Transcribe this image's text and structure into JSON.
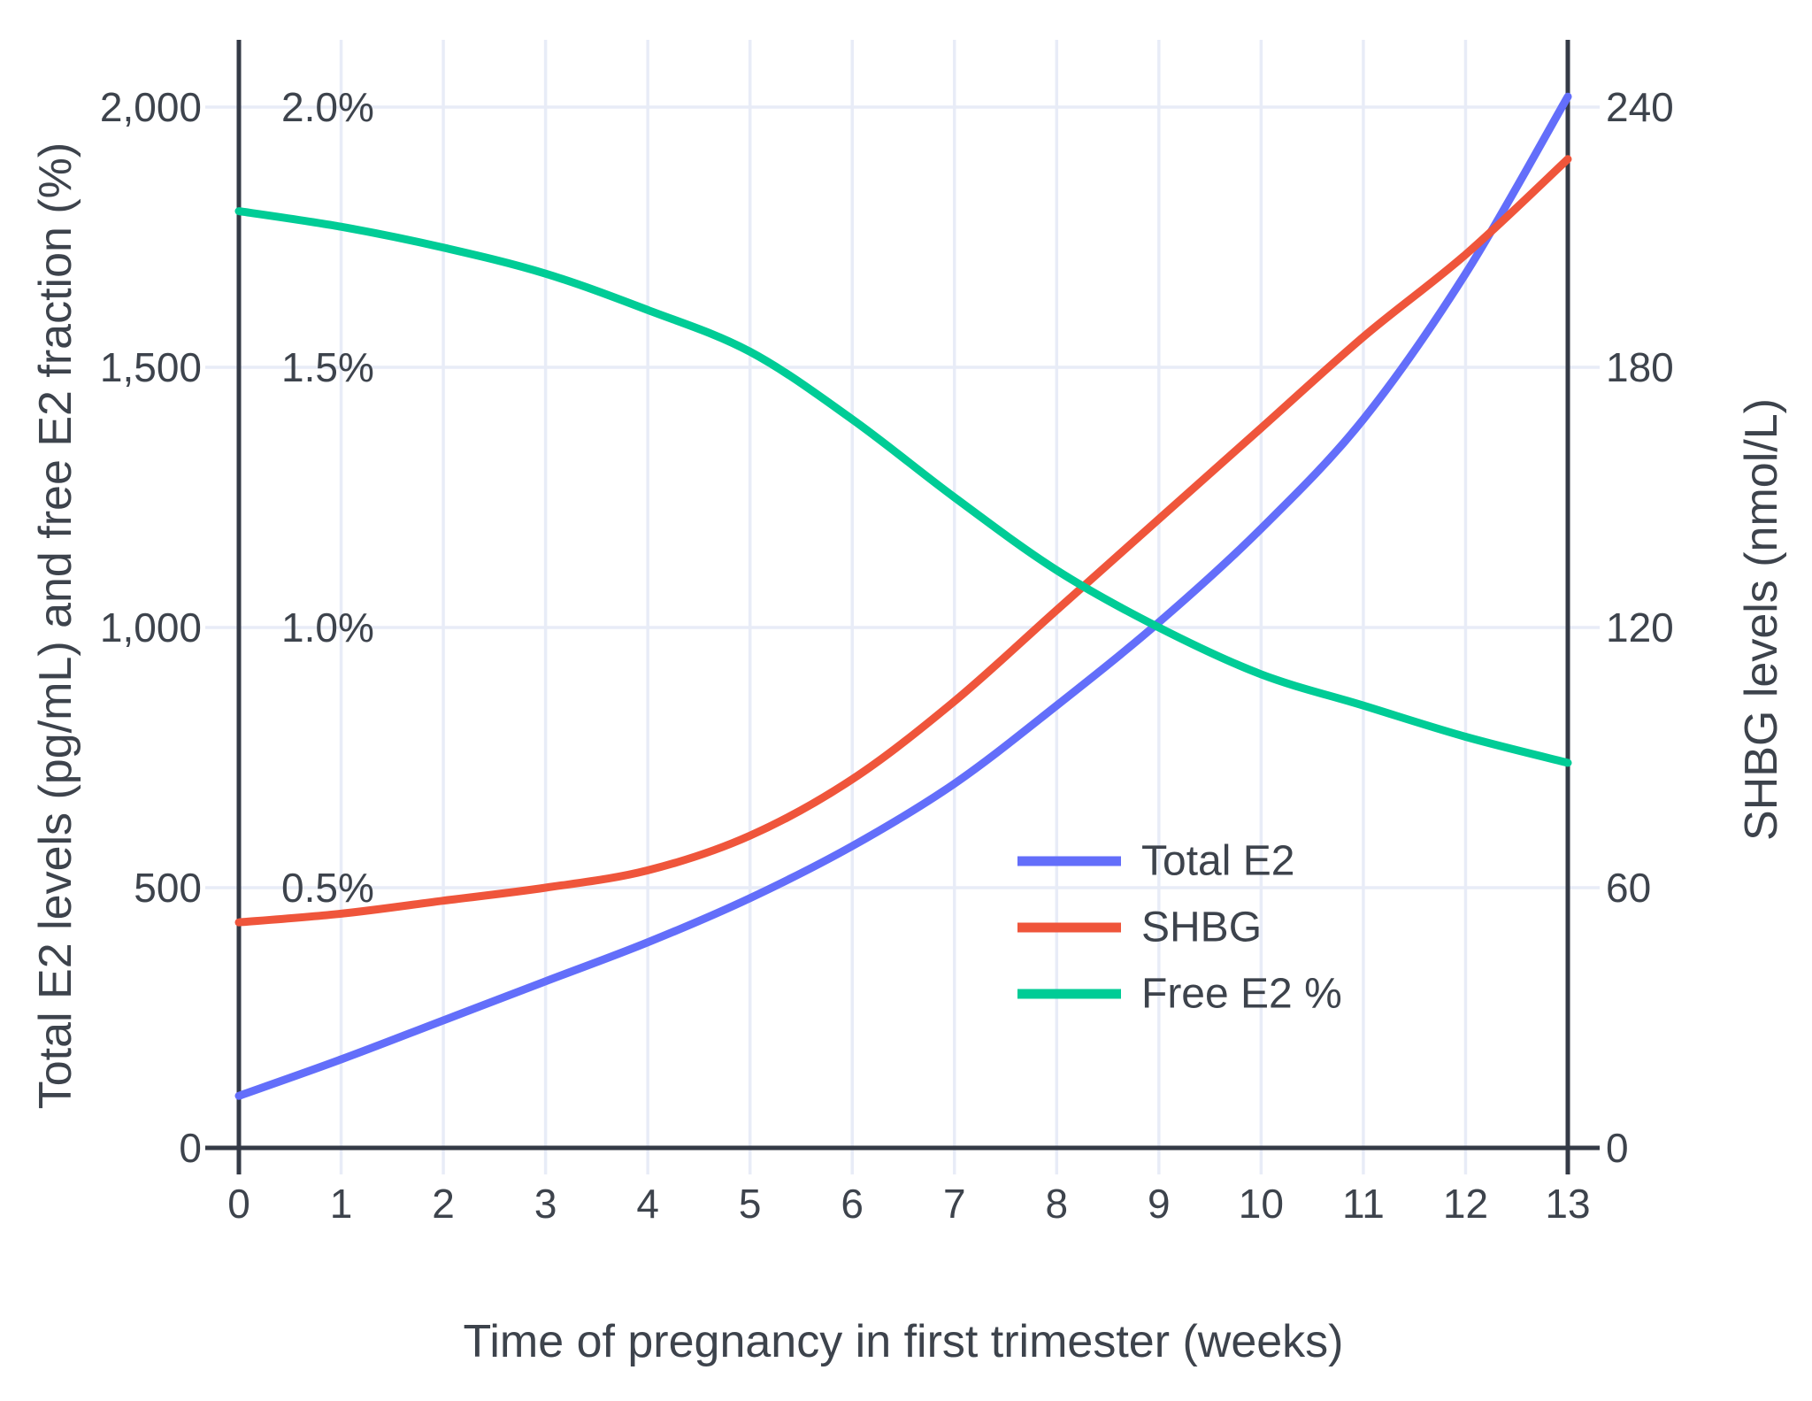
{
  "accent_colors": {
    "total_e2": "#636EFA",
    "shbg": "#EF553B",
    "free_e2": "#00CC96",
    "gridline": "#E8ECF7",
    "axis_line": "#343A46",
    "text": "#3D434C"
  },
  "axes": {
    "x_title": "Time of pregnancy in first trimester (weeks)",
    "y_left_title": "Total E2 levels (pg/mL) and free E2 fraction (%)",
    "y_right_title": "SHBG levels (nmol/L)",
    "x_ticks": [
      "0",
      "1",
      "2",
      "3",
      "4",
      "5",
      "6",
      "7",
      "8",
      "9",
      "10",
      "11",
      "12",
      "13"
    ],
    "y_left_ticks": [
      {
        "label": "0",
        "value": 0
      },
      {
        "label": "500",
        "value": 500
      },
      {
        "label": "1,000",
        "value": 1000
      },
      {
        "label": "1,500",
        "value": 1500
      },
      {
        "label": "2,000",
        "value": 2000
      }
    ],
    "y_left_inner_pct_ticks": [
      {
        "label": "0.5%",
        "value": 500
      },
      {
        "label": "1.0%",
        "value": 1000
      },
      {
        "label": "1.5%",
        "value": 1500
      },
      {
        "label": "2.0%",
        "value": 2000
      }
    ],
    "y_right_ticks": [
      {
        "label": "0",
        "value": 0
      },
      {
        "label": "60",
        "value": 60
      },
      {
        "label": "120",
        "value": 120
      },
      {
        "label": "180",
        "value": 180
      },
      {
        "label": "240",
        "value": 240
      }
    ]
  },
  "legend": [
    {
      "label": "Total E2",
      "color": "#636EFA"
    },
    {
      "label": "SHBG",
      "color": "#EF553B"
    },
    {
      "label": "Free E2 %",
      "color": "#00CC96"
    }
  ],
  "chart_data": {
    "type": "line",
    "x": [
      0,
      1,
      2,
      3,
      4,
      5,
      6,
      7,
      8,
      9,
      10,
      11,
      12,
      13
    ],
    "xlabel": "Time of pregnancy in first trimester (weeks)",
    "ylabel_left": "Total E2 levels (pg/mL) and free E2 fraction (%)",
    "ylabel_right": "SHBG levels (nmol/L)",
    "x_range": [
      0,
      13
    ],
    "y_left_range": [
      0,
      2130
    ],
    "y_right_range": [
      0,
      255.5
    ],
    "grid": true,
    "legend_position": "inside-right-middle",
    "series": [
      {
        "name": "Total E2",
        "axis": "left",
        "units": "pg/mL",
        "color": "#636EFA",
        "values": [
          100,
          170,
          245,
          320,
          395,
          480,
          580,
          700,
          850,
          1010,
          1190,
          1400,
          1680,
          2020
        ]
      },
      {
        "name": "SHBG",
        "axis": "right",
        "units": "nmol/L",
        "color": "#EF553B",
        "values": [
          52,
          54,
          57,
          60,
          64,
          72,
          85,
          103,
          124,
          145,
          166,
          187,
          206,
          228
        ]
      },
      {
        "name": "Free E2 %",
        "axis": "left-percent",
        "units": "%",
        "color": "#00CC96",
        "values": [
          1.8,
          1.77,
          1.73,
          1.68,
          1.61,
          1.53,
          1.4,
          1.25,
          1.11,
          1.0,
          0.91,
          0.85,
          0.79,
          0.74
        ]
      }
    ]
  }
}
